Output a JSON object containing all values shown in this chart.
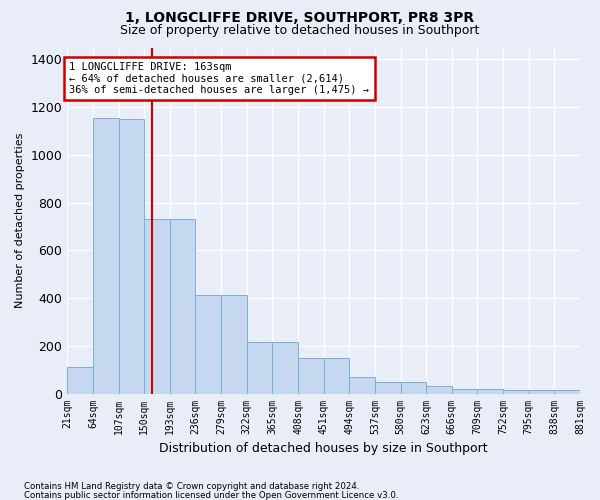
{
  "title": "1, LONGCLIFFE DRIVE, SOUTHPORT, PR8 3PR",
  "subtitle": "Size of property relative to detached houses in Southport",
  "xlabel": "Distribution of detached houses by size in Southport",
  "ylabel": "Number of detached properties",
  "footer_line1": "Contains HM Land Registry data © Crown copyright and database right 2024.",
  "footer_line2": "Contains public sector information licensed under the Open Government Licence v3.0.",
  "tick_labels": [
    "21sqm",
    "64sqm",
    "107sqm",
    "150sqm",
    "193sqm",
    "236sqm",
    "279sqm",
    "322sqm",
    "365sqm",
    "408sqm",
    "451sqm",
    "494sqm",
    "537sqm",
    "580sqm",
    "623sqm",
    "666sqm",
    "709sqm",
    "752sqm",
    "795sqm",
    "838sqm",
    "881sqm"
  ],
  "bar_heights": [
    110,
    1155,
    1150,
    730,
    730,
    415,
    415,
    215,
    215,
    150,
    150,
    70,
    48,
    48,
    30,
    20,
    20,
    15,
    15,
    15
  ],
  "bar_color": "#c5d8ef",
  "bar_edge_color": "#7bafd4",
  "vline_color": "#cc0000",
  "vline_position": 3.3,
  "annotation_text": "1 LONGCLIFFE DRIVE: 163sqm\n← 64% of detached houses are smaller (2,614)\n36% of semi-detached houses are larger (1,475) →",
  "annot_box_color": "#cc0000",
  "ylim_max": 1450,
  "bg_color": "#e8edf8",
  "grid_color": "#d8dde8",
  "title_fontsize": 10,
  "subtitle_fontsize": 9,
  "annot_fontsize": 7.5,
  "tick_fontsize": 7,
  "ylabel_fontsize": 8,
  "xlabel_fontsize": 9
}
